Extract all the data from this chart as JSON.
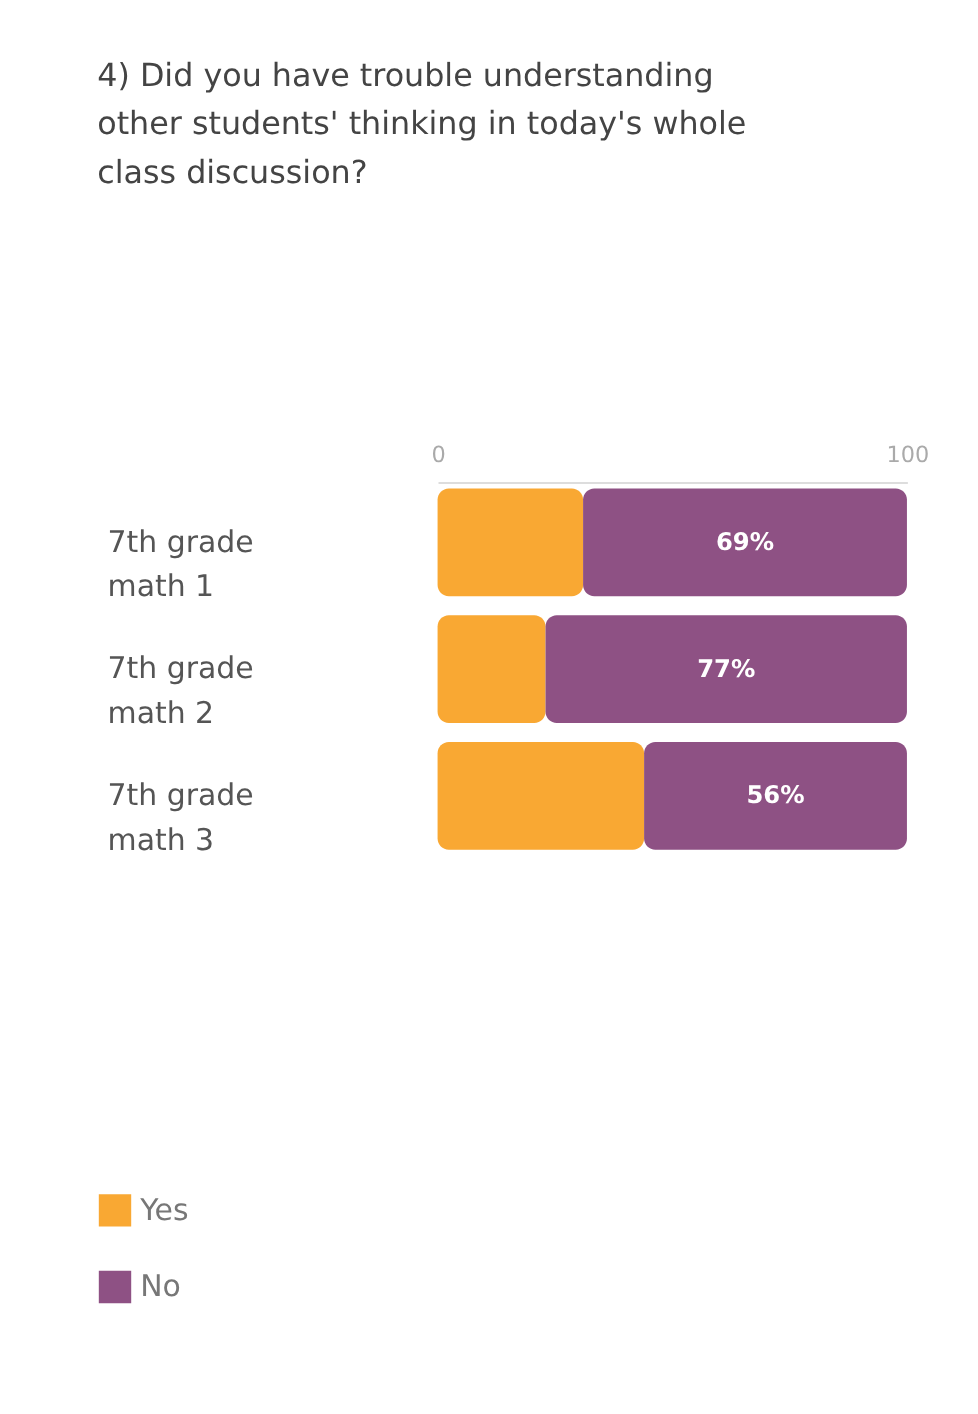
{
  "chart_data": {
    "type": "bar",
    "orientation": "horizontal",
    "stacked": true,
    "title": "4) Did you have trouble understanding other students' thinking in today's whole class discussion?",
    "categories": [
      "7th grade math 1",
      "7th grade math 2",
      "7th grade math 3"
    ],
    "series": [
      {
        "name": "Yes",
        "color": "#f9a833",
        "values": [
          31,
          23,
          44
        ]
      },
      {
        "name": "No",
        "color": "#8e5184",
        "values": [
          69,
          77,
          56
        ],
        "value_labels": [
          "69%",
          "77%",
          "56%"
        ]
      }
    ],
    "xlim": [
      0,
      100
    ],
    "xticks": [
      0,
      100
    ],
    "legend": "bottom left"
  }
}
